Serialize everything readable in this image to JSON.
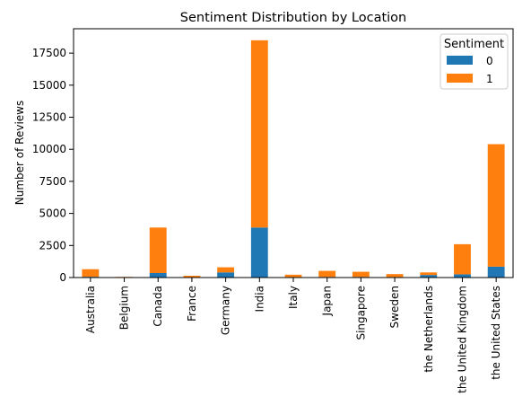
{
  "chart_data": {
    "type": "bar",
    "stacked": true,
    "title": "Sentiment Distribution by Location",
    "xlabel": "",
    "ylabel": "Number of Reviews",
    "ylim": [
      0,
      19400
    ],
    "yticks": [
      0,
      2500,
      5000,
      7500,
      10000,
      12500,
      15000,
      17500
    ],
    "ytick_labels": [
      "0",
      "2500",
      "5000",
      "7500",
      "10000",
      "12500",
      "15000",
      "17500"
    ],
    "grid": false,
    "categories": [
      "Australia",
      "Belgium",
      "Canada",
      "France",
      "Germany",
      "India",
      "Italy",
      "Japan",
      "Singapore",
      "Sweden",
      "the Netherlands",
      "the United Kingdom",
      "the United States"
    ],
    "legend": {
      "title": "Sentiment",
      "placement": "top-right"
    },
    "series": [
      {
        "name": "0",
        "color": "#1f77b4",
        "values": [
          60,
          10,
          350,
          30,
          400,
          3900,
          40,
          50,
          50,
          40,
          200,
          250,
          850
        ]
      },
      {
        "name": "1",
        "color": "#ff7f0e",
        "values": [
          590,
          40,
          3550,
          110,
          400,
          14600,
          180,
          470,
          400,
          230,
          200,
          2350,
          9550
        ]
      }
    ]
  }
}
